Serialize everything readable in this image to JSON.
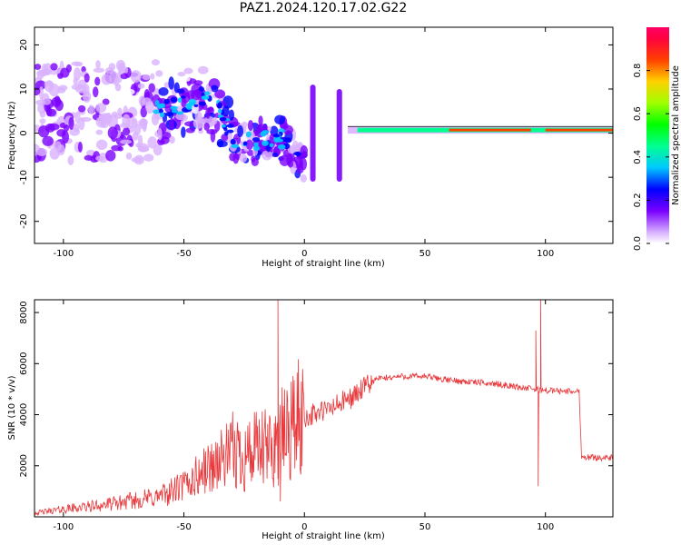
{
  "title": "PAZ1.2024.120.17.02.G22",
  "chart_data": [
    {
      "type": "heatmap",
      "title": "PAZ1.2024.120.17.02.G22",
      "xlabel": "Height of straight line (km)",
      "ylabel": "Frequency (Hz)",
      "xlim": [
        -112,
        128
      ],
      "ylim": [
        -25,
        24
      ],
      "xticks": [
        -100,
        -50,
        0,
        50,
        100
      ],
      "yticks": [
        -20,
        -10,
        0,
        10,
        20
      ],
      "colorbar": {
        "label": "Normalized spectral amplitude",
        "range": [
          0,
          1
        ],
        "ticks": [
          0.0,
          0.2,
          0.4,
          0.6,
          0.8
        ]
      },
      "ridge": [
        {
          "x": -60,
          "y": 5
        },
        {
          "x": -40,
          "y": 8
        },
        {
          "x": -35,
          "y": 5
        },
        {
          "x": -30,
          "y": -1
        },
        {
          "x": -20,
          "y": -2
        },
        {
          "x": -10,
          "y": -1
        },
        {
          "x": -5,
          "y": -3
        },
        {
          "x": 0,
          "y": -6
        },
        {
          "x": 4,
          "y": 11
        },
        {
          "x": 5,
          "y": -11
        },
        {
          "x": 8,
          "y": -5
        },
        {
          "x": 12,
          "y": -4
        },
        {
          "x": 14,
          "y": 10
        },
        {
          "x": 16,
          "y": -11
        },
        {
          "x": 18,
          "y": 1
        },
        {
          "x": 20,
          "y": -2
        },
        {
          "x": 25,
          "y": 0
        },
        {
          "x": 30,
          "y": 0.7
        },
        {
          "x": 50,
          "y": 0.7
        },
        {
          "x": 95,
          "y": 0.7
        },
        {
          "x": 96,
          "y": -1
        },
        {
          "x": 100,
          "y": 0.7
        },
        {
          "x": 128,
          "y": 0.7
        }
      ]
    },
    {
      "type": "line",
      "xlabel": "Height of straight line (km)",
      "ylabel": "SNR (10 * v/v)",
      "xlim": [
        -112,
        128
      ],
      "ylim": [
        0,
        8500
      ],
      "xticks": [
        -100,
        -50,
        0,
        50,
        100
      ],
      "yticks": [
        2000,
        4000,
        6000,
        8000
      ],
      "series": [
        {
          "color": "#e8383b",
          "envelope": [
            {
              "x": -112,
              "y": 150
            },
            {
              "x": -100,
              "y": 300
            },
            {
              "x": -80,
              "y": 500
            },
            {
              "x": -60,
              "y": 800
            },
            {
              "x": -50,
              "y": 1200
            },
            {
              "x": -40,
              "y": 1900
            },
            {
              "x": -30,
              "y": 2500
            },
            {
              "x": -20,
              "y": 2500
            },
            {
              "x": -15,
              "y": 2600
            },
            {
              "x": -10,
              "y": 3000
            },
            {
              "x": -5,
              "y": 3600
            },
            {
              "x": 0,
              "y": 3900
            },
            {
              "x": 10,
              "y": 4200
            },
            {
              "x": 20,
              "y": 4700
            },
            {
              "x": 30,
              "y": 5400
            },
            {
              "x": 40,
              "y": 5500
            },
            {
              "x": 50,
              "y": 5500
            },
            {
              "x": 60,
              "y": 5350
            },
            {
              "x": 80,
              "y": 5200
            },
            {
              "x": 95,
              "y": 5000
            },
            {
              "x": 100,
              "y": 4950
            },
            {
              "x": 114,
              "y": 4900
            },
            {
              "x": 115,
              "y": 2350
            },
            {
              "x": 128,
              "y": 2300
            }
          ],
          "spikes": [
            {
              "x": -11,
              "y": 8500
            },
            {
              "x": -10,
              "y": 600
            },
            {
              "x": 96,
              "y": 7300
            },
            {
              "x": 97,
              "y": 1200
            },
            {
              "x": 98,
              "y": 8500
            }
          ]
        }
      ]
    }
  ]
}
